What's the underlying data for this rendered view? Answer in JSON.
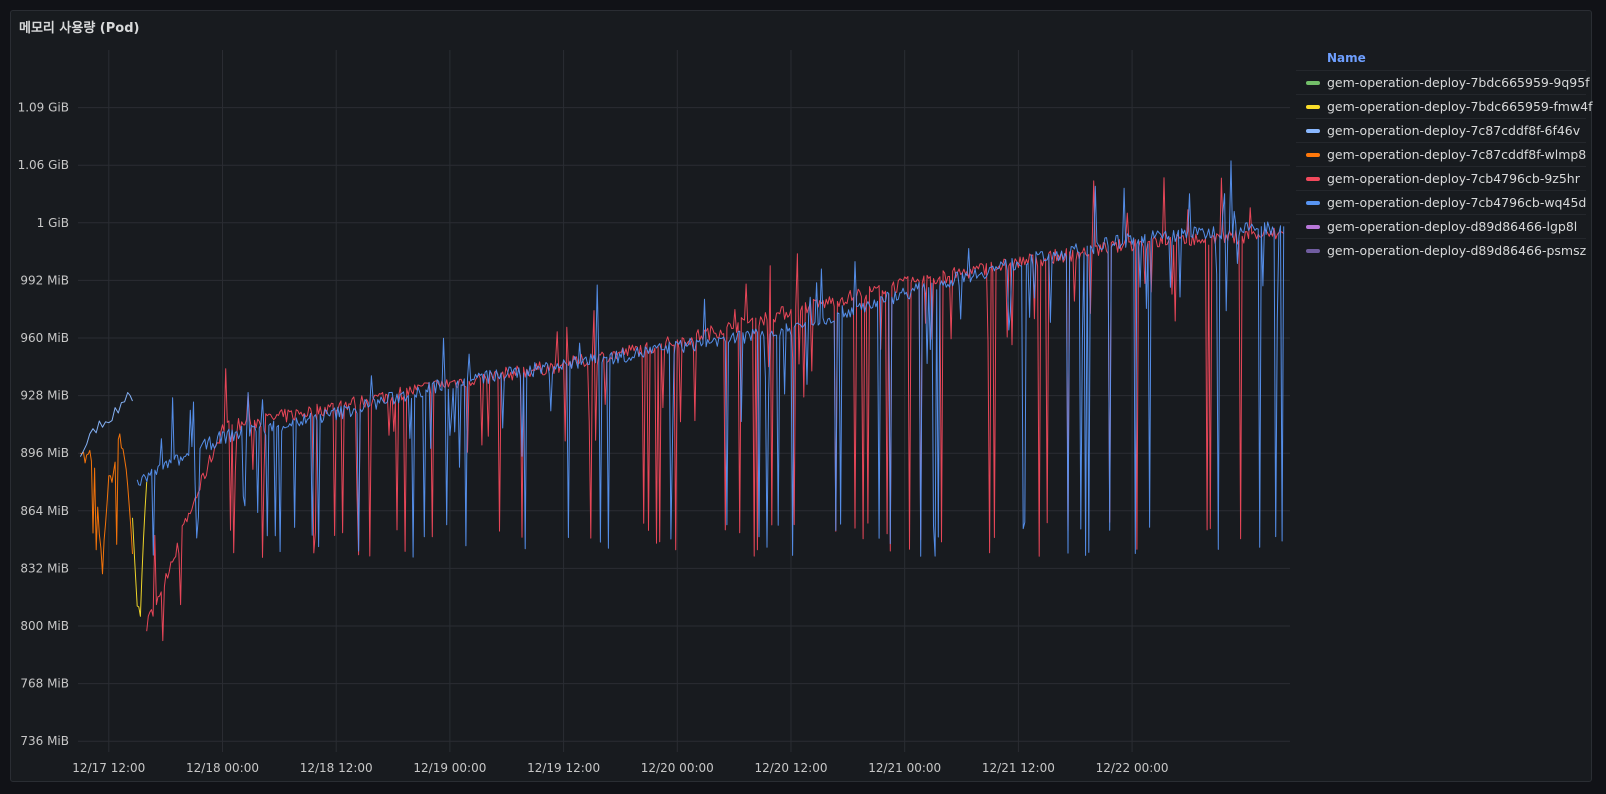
{
  "panel": {
    "title": "메모리 사용량 (Pod)"
  },
  "legend": {
    "header": "Name",
    "items": [
      {
        "label": "gem-operation-deploy-7bdc665959-9q95f",
        "color": "#73bf69"
      },
      {
        "label": "gem-operation-deploy-7bdc665959-fmw4f",
        "color": "#fade2a"
      },
      {
        "label": "gem-operation-deploy-7c87cddf8f-6f46v",
        "color": "#8ab8ff"
      },
      {
        "label": "gem-operation-deploy-7c87cddf8f-wlmp8",
        "color": "#ff780a"
      },
      {
        "label": "gem-operation-deploy-7cb4796cb-9z5hr",
        "color": "#f2495c"
      },
      {
        "label": "gem-operation-deploy-7cb4796cb-wq45d",
        "color": "#5794f2"
      },
      {
        "label": "gem-operation-deploy-d89d86466-lgp8l",
        "color": "#b877d9"
      },
      {
        "label": "gem-operation-deploy-d89d86466-psmsz",
        "color": "#705da0"
      }
    ]
  },
  "chart_data": {
    "type": "line",
    "title": "메모리 사용량 (Pod)",
    "unit": "MiB",
    "ylim": [
      730,
      1120
    ],
    "yticks": [
      736,
      768,
      800,
      832,
      864,
      896,
      928,
      960,
      992,
      1024,
      1056,
      1088
    ],
    "yticklabels": [
      "736 MiB",
      "768 MiB",
      "800 MiB",
      "832 MiB",
      "864 MiB",
      "896 MiB",
      "928 MiB",
      "960 MiB",
      "992 MiB",
      "1 GiB",
      "1.06 GiB",
      "1.09 GiB"
    ],
    "xlim": [
      "12/17 08:45",
      "12/22 16:40"
    ],
    "xticklabels": [
      "12/17 12:00",
      "12/18 00:00",
      "12/18 12:00",
      "12/19 00:00",
      "12/19 12:00",
      "12/20 00:00",
      "12/20 12:00",
      "12/21 00:00",
      "12/21 12:00",
      "12/22 00:00"
    ],
    "grid": true,
    "legend_placement": "right",
    "series": [
      {
        "name": "gem-operation-deploy-7c87cddf8f-wlmp8",
        "color": "#ff780a",
        "x": [
          "12/17 09:00",
          "12/17 09:30",
          "12/17 10:00",
          "12/17 10:30",
          "12/17 11:00",
          "12/17 11:20",
          "12/17 11:40",
          "12/17 12:00",
          "12/17 12:30",
          "12/17 13:00",
          "12/17 13:30",
          "12/17 14:00",
          "12/17 14:30"
        ],
        "y": [
          900,
          892,
          895,
          888,
          850,
          830,
          860,
          880,
          885,
          905,
          900,
          880,
          840
        ]
      },
      {
        "name": "gem-operation-deploy-7bdc665959-fmw4f",
        "color": "#fade2a",
        "x": [
          "12/17 14:30",
          "12/17 15:00",
          "12/17 15:20",
          "12/17 15:40",
          "12/17 16:00"
        ],
        "y": [
          860,
          810,
          806,
          850,
          880
        ]
      },
      {
        "name": "gem-operation-deploy-7c87cddf8f-6f46v",
        "color": "#8ab8ff",
        "x": [
          "12/17 09:00",
          "12/17 10:00",
          "12/17 11:00",
          "12/17 12:00",
          "12/17 13:00",
          "12/17 14:00",
          "12/17 14:30"
        ],
        "y": [
          895,
          905,
          912,
          915,
          920,
          930,
          925
        ]
      },
      {
        "name": "gem-operation-deploy-7cb4796cb-9z5hr",
        "color": "#f2495c",
        "x": [
          "12/17 16:00",
          "12/18 00:00",
          "12/18 12:00",
          "12/19 00:00",
          "12/19 12:00",
          "12/20 00:00",
          "12/20 12:00",
          "12/21 00:00",
          "12/21 12:00",
          "12/22 00:00",
          "12/22 16:00"
        ],
        "y": [
          800,
          910,
          922,
          935,
          945,
          958,
          975,
          990,
          1002,
          1012,
          1018
        ]
      },
      {
        "name": "gem-operation-deploy-7cb4796cb-wq45d",
        "color": "#5794f2",
        "x": [
          "12/17 15:00",
          "12/18 00:00",
          "12/18 12:00",
          "12/19 00:00",
          "12/19 12:00",
          "12/20 00:00",
          "12/20 12:00",
          "12/21 00:00",
          "12/21 12:00",
          "12/22 00:00",
          "12/22 16:00"
        ],
        "y": [
          880,
          905,
          918,
          935,
          945,
          955,
          965,
          985,
          1002,
          1015,
          1022
        ]
      }
    ]
  }
}
